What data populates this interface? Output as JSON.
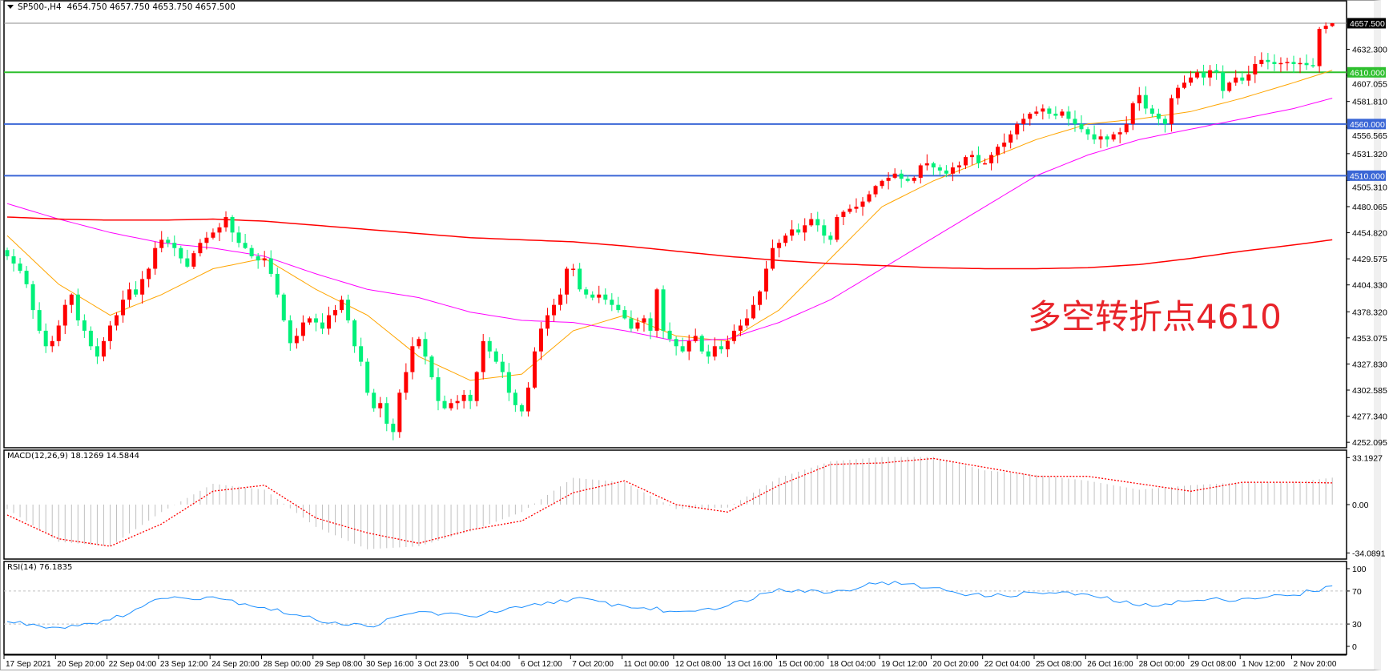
{
  "header": {
    "symbol": "SP500-,H4",
    "ohlc": "4654.750 4657.750 4653.750 4657.500"
  },
  "annotation": "多空转折点4610",
  "colors": {
    "bull": "#ff0000",
    "bear": "#00f07a",
    "ma_fast": "#ffa500",
    "ma_mid": "#ff00ff",
    "ma_slow": "#ff0000",
    "macd_hist": "#c0c0c0",
    "macd_signal": "#ff0000",
    "rsi": "#1e90ff"
  },
  "price_axis": {
    "ticks": [
      "4632.300",
      "4607.055",
      "4581.810",
      "4556.565",
      "4531.320",
      "4505.310",
      "4480.065",
      "4454.820",
      "4429.575",
      "4404.330",
      "4378.320",
      "4353.075",
      "4327.830",
      "4302.585",
      "4277.340",
      "4252.095"
    ]
  },
  "levels": [
    {
      "price": 4657.5,
      "label": "4657.500",
      "line_color": "#8c8c8c",
      "label_bg": "#000000"
    },
    {
      "price": 4610,
      "label": "4610.000",
      "line_color": "#2ebf2e",
      "label_bg": "#2ebf2e"
    },
    {
      "price": 4560,
      "label": "4560.000",
      "line_color": "#3a66d6",
      "label_bg": "#3a66d6"
    },
    {
      "price": 4510,
      "label": "4510.000",
      "line_color": "#3a66d6",
      "label_bg": "#3a66d6"
    }
  ],
  "time_axis": {
    "labels": [
      "17 Sep 2021",
      "20 Sep 20:00",
      "22 Sep 04:00",
      "23 Sep 12:00",
      "24 Sep 20:00",
      "28 Sep 00:00",
      "29 Sep 08:00",
      "30 Sep 16:00",
      "3 Oct 23:00",
      "5 Oct 04:00",
      "6 Oct 12:00",
      "7 Oct 20:00",
      "11 Oct 00:00",
      "12 Oct 08:00",
      "13 Oct 16:00",
      "15 Oct 00:00",
      "18 Oct 04:00",
      "19 Oct 12:00",
      "20 Oct 20:00",
      "22 Oct 04:00",
      "25 Oct 08:00",
      "26 Oct 16:00",
      "28 Oct 00:00",
      "29 Oct 08:00",
      "1 Nov 12:00",
      "2 Nov 20:00"
    ]
  },
  "macd": {
    "title": "MACD(12,26,9) 18.1269 14.5844",
    "axis_labels": [
      "33.1927",
      "0.00",
      "-34.0891"
    ],
    "histogram": [
      -3,
      -25,
      -28,
      -5,
      14,
      10,
      -15,
      -30,
      -28,
      -18,
      -5,
      18,
      15,
      -3,
      -2,
      18,
      29,
      32,
      32,
      23,
      20,
      16,
      10,
      13,
      15,
      15,
      18.1269
    ],
    "signal": [
      -7,
      -23,
      -28,
      -13,
      9,
      13,
      -9,
      -19,
      -26,
      -17,
      -11,
      8,
      16,
      0,
      -5,
      13,
      27,
      28,
      31,
      25,
      19,
      19,
      14,
      9,
      15,
      15,
      14.5844
    ]
  },
  "rsi": {
    "title": "RSI(14) 76.1835",
    "axis_labels": [
      "100",
      "70",
      "30",
      "0"
    ],
    "levels": [
      70,
      30
    ],
    "values": [
      33,
      26,
      35,
      61,
      63,
      50,
      35,
      27,
      45,
      39,
      50,
      61,
      52,
      45,
      52,
      73,
      68,
      81,
      74,
      63,
      68,
      66,
      52,
      58,
      61,
      65,
      76.1835
    ]
  },
  "chart_data": {
    "type": "candlestick",
    "symbol": "SP500-",
    "timeframe": "H4",
    "ylim": [
      4252.095,
      4657.5
    ],
    "bars_per_time_label": 8,
    "closes": [
      4432,
      4425,
      4418,
      4405,
      4380,
      4360,
      4345,
      4350,
      4365,
      4385,
      4395,
      4370,
      4360,
      4345,
      4335,
      4350,
      4365,
      4375,
      4390,
      4400,
      4395,
      4410,
      4420,
      4440,
      4448,
      4445,
      4440,
      4430,
      4422,
      4435,
      4445,
      4450,
      4455,
      4460,
      4470,
      4455,
      4445,
      4440,
      4432,
      4428,
      4430,
      4415,
      4395,
      4370,
      4348,
      4355,
      4368,
      4372,
      4368,
      4362,
      4375,
      4380,
      4390,
      4370,
      4345,
      4330,
      4300,
      4285,
      4290,
      4270,
      4262,
      4300,
      4320,
      4345,
      4352,
      4335,
      4315,
      4292,
      4285,
      4290,
      4292,
      4298,
      4292,
      4320,
      4350,
      4340,
      4330,
      4320,
      4300,
      4288,
      4282,
      4305,
      4340,
      4362,
      4375,
      4385,
      4395,
      4420,
      4420,
      4400,
      4395,
      4392,
      4395,
      4390,
      4385,
      4380,
      4372,
      4362,
      4368,
      4372,
      4360,
      4400,
      4360,
      4352,
      4345,
      4340,
      4350,
      4355,
      4340,
      4335,
      4345,
      4342,
      4350,
      4360,
      4365,
      4372,
      4385,
      4398,
      4420,
      4440,
      4445,
      4452,
      4458,
      4455,
      4462,
      4468,
      4462,
      4452,
      4448,
      4470,
      4475,
      4478,
      4480,
      4485,
      4492,
      4500,
      4505,
      4508,
      4512,
      4507,
      4505,
      4508,
      4520,
      4522,
      4518,
      4515,
      4512,
      4518,
      4520,
      4528,
      4530,
      4522,
      4522,
      4530,
      4538,
      4542,
      4550,
      4560,
      4565,
      4570,
      4572,
      4575,
      4570,
      4568,
      4572,
      4565,
      4560,
      4555,
      4550,
      4545,
      4548,
      4545,
      4550,
      4552,
      4560,
      4580,
      4588,
      4575,
      4570,
      4565,
      4560,
      4585,
      4595,
      4600,
      4605,
      4610,
      4605,
      4612,
      4610,
      4592,
      4600,
      4605,
      4602,
      4608,
      4618,
      4622,
      4620,
      4618,
      4619,
      4620,
      4618,
      4619,
      4617,
      4616,
      4652,
      4655,
      4657.5
    ],
    "last_bar": {
      "open": 4654.75,
      "high": 4657.75,
      "low": 4653.75,
      "close": 4657.5
    },
    "moving_averages": [
      {
        "color": "#ffa500",
        "values": [
          4452,
          4405,
          4375,
          4395,
          4420,
          4430,
          4400,
          4375,
          4335,
          4312,
          4318,
          4360,
          4375,
          4355,
          4350,
          4380,
          4430,
          4480,
          4505,
          4525,
          4545,
          4560,
          4565,
          4572,
          4585,
          4600,
          4612
        ]
      },
      {
        "color": "#ff00ff",
        "values": [
          4483,
          4468,
          4455,
          4445,
          4440,
          4432,
          4415,
          4400,
          4392,
          4378,
          4370,
          4368,
          4360,
          4350,
          4352,
          4368,
          4390,
          4420,
          4450,
          4480,
          4510,
          4530,
          4545,
          4555,
          4565,
          4575,
          4585
        ]
      },
      {
        "color": "#ff0000",
        "values": [
          4470,
          4468,
          4467,
          4467,
          4468,
          4466,
          4462,
          4458,
          4454,
          4450,
          4448,
          4446,
          4442,
          4437,
          4432,
          4428,
          4425,
          4423,
          4421,
          4420,
          4420,
          4421,
          4424,
          4430,
          4437,
          4443,
          4448
        ]
      }
    ]
  }
}
